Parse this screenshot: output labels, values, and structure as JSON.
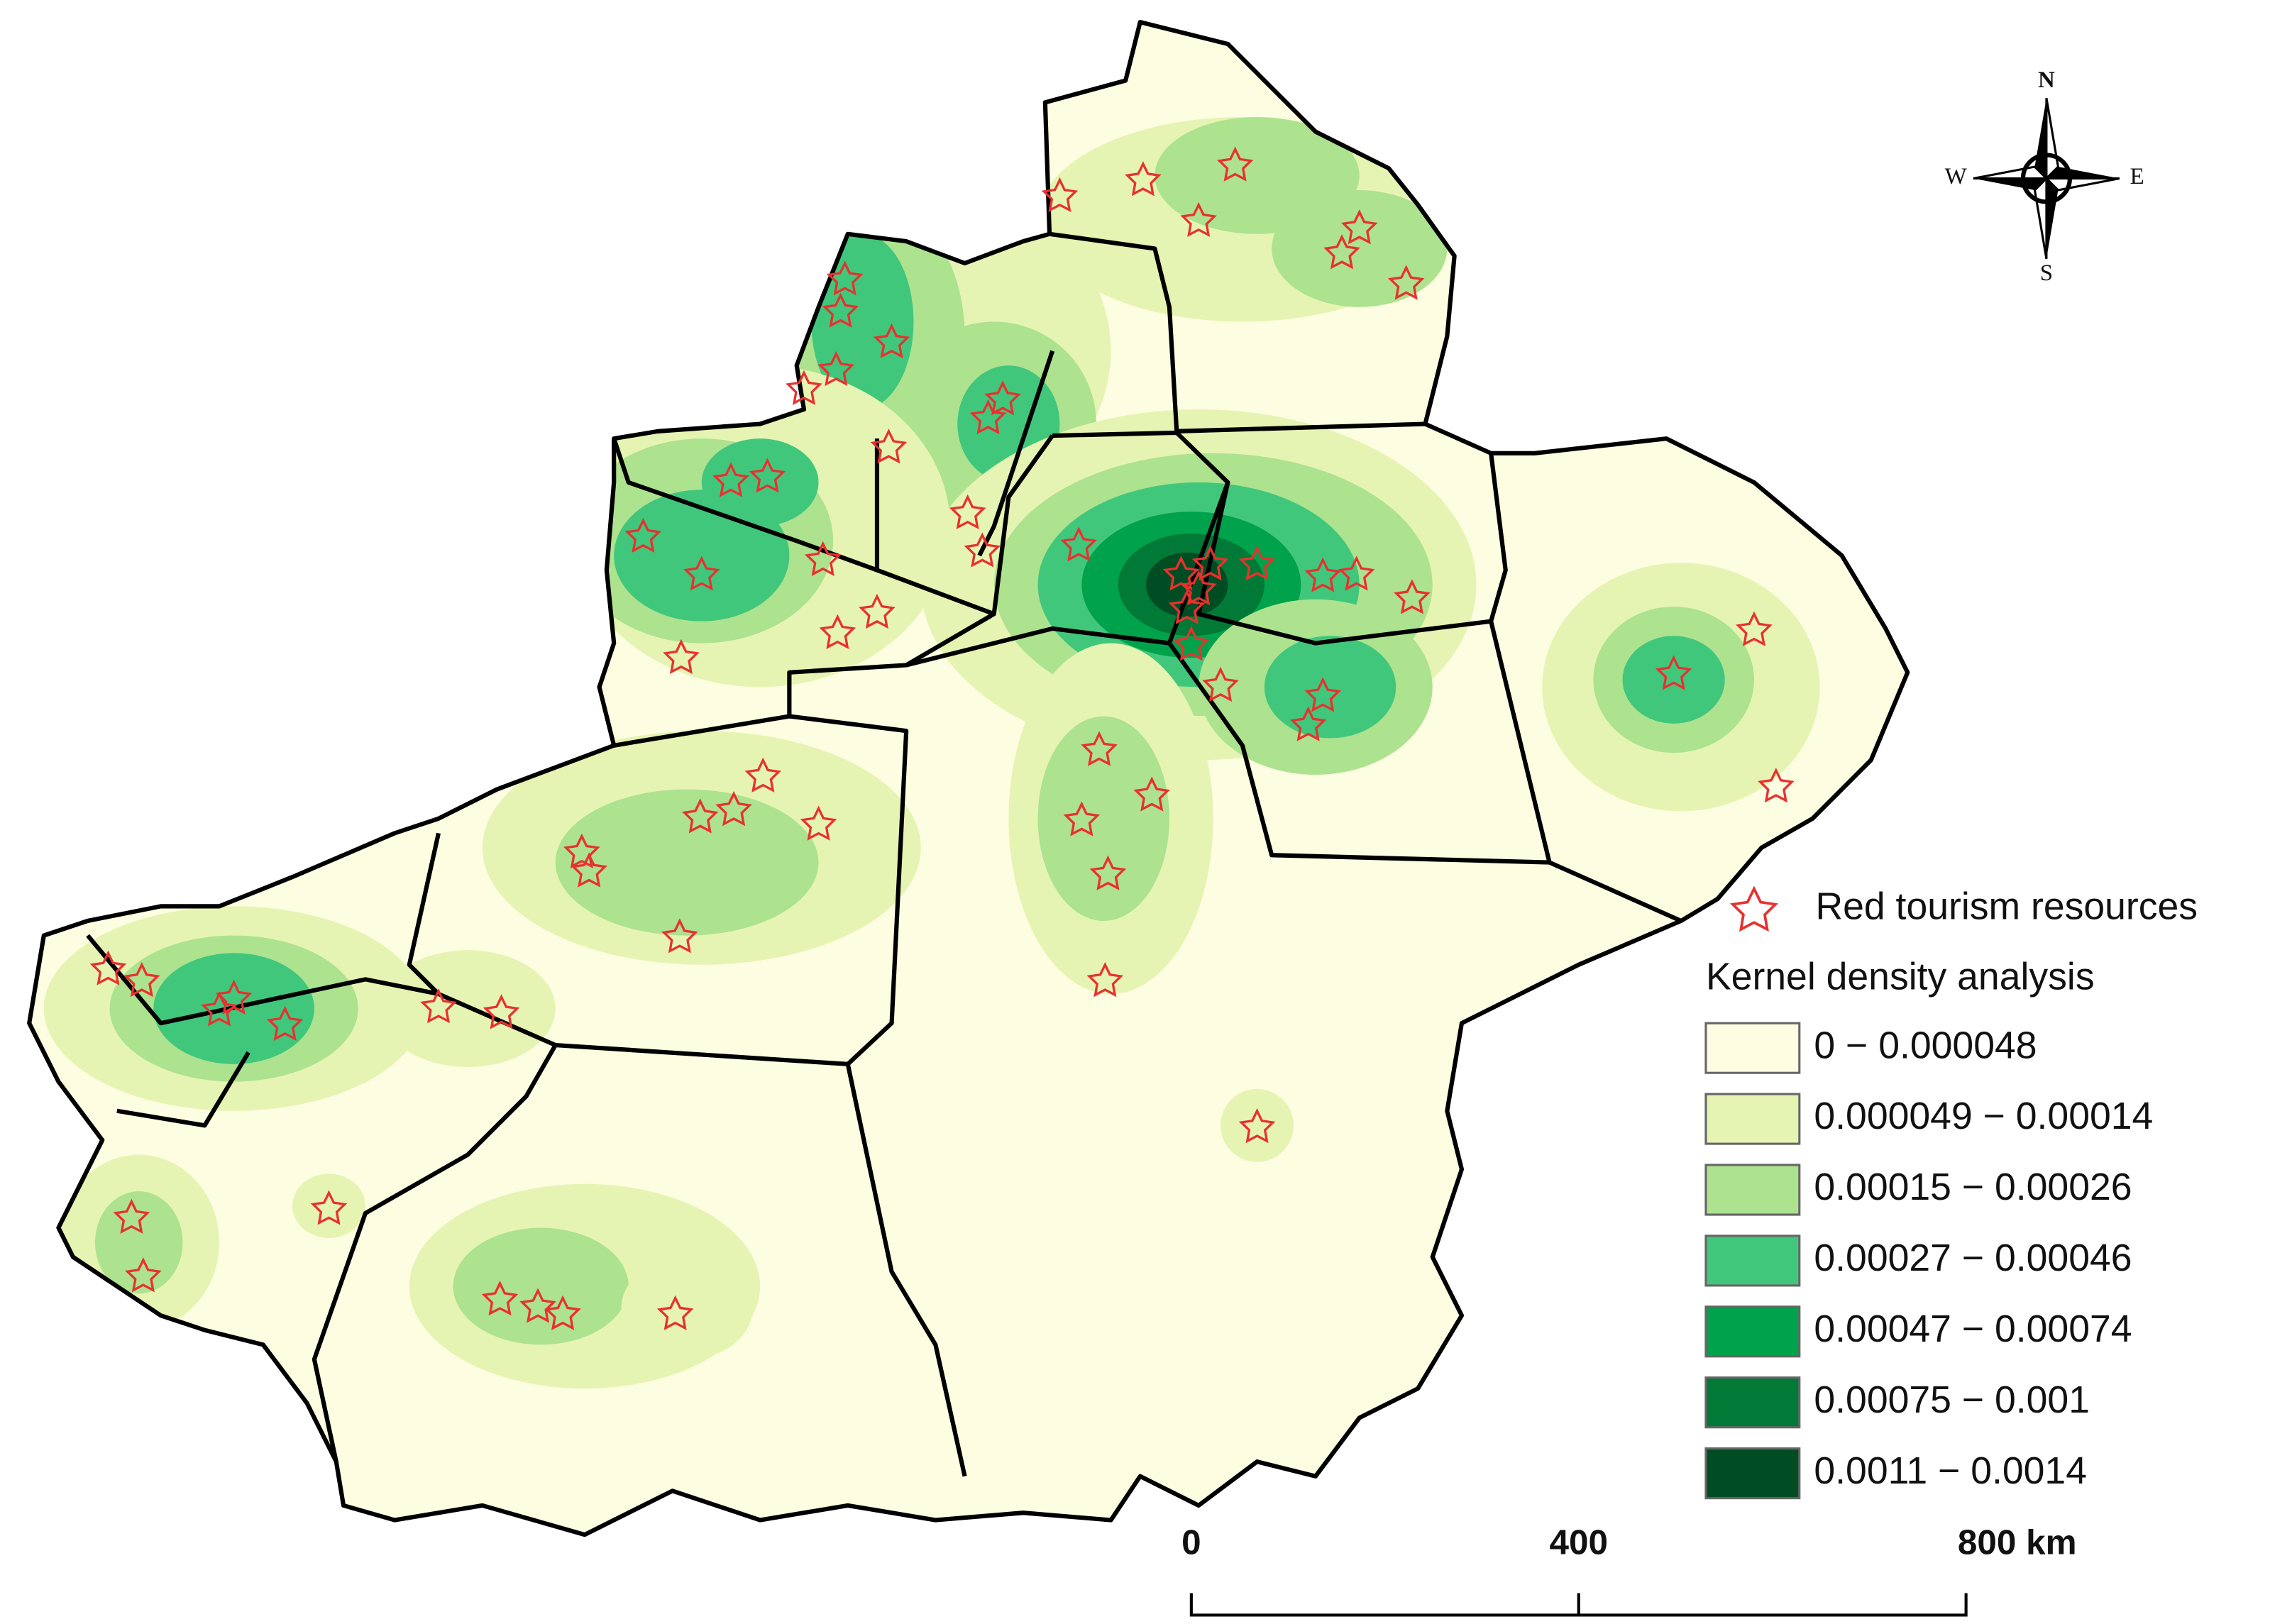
{
  "compass": {
    "north": "N",
    "south": "S",
    "west": "W",
    "east": "E"
  },
  "legend": {
    "marker_label": "Red tourism resources",
    "title": "Kernel density analysis",
    "classes": [
      {
        "label": "0 − 0.000048",
        "color": "#fdfde2"
      },
      {
        "label": "0.000049 − 0.00014",
        "color": "#e6f4b3"
      },
      {
        "label": "0.00015 − 0.00026",
        "color": "#ade28f"
      },
      {
        "label": "0.00027 − 0.00046",
        "color": "#41c77c"
      },
      {
        "label": "0.00047 − 0.00074",
        "color": "#00a24b"
      },
      {
        "label": "0.00075 − 0.001",
        "color": "#007a36"
      },
      {
        "label": "0.0011 − 0.0014",
        "color": "#004d23"
      }
    ]
  },
  "scale_bar": {
    "ticks": [
      "0",
      "400",
      "800 km"
    ]
  }
}
